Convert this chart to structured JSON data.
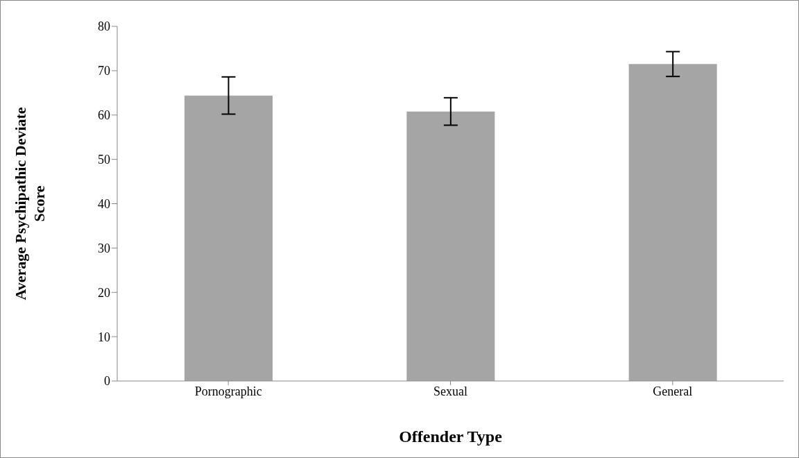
{
  "chart_data": {
    "type": "bar",
    "xlabel": "Offender Type",
    "ylabel": "Average Psychipathic Deviate Score",
    "categories": [
      "Pornographic",
      "Sexual",
      "General"
    ],
    "values": [
      64.4,
      60.8,
      71.5
    ],
    "errors": [
      4.2,
      3.1,
      2.8
    ],
    "color": "#a5a5a5",
    "ylim": [
      0,
      80
    ],
    "yticks": [
      0,
      10,
      20,
      30,
      40,
      50,
      60,
      70,
      80
    ],
    "grid": false,
    "legend": false
  }
}
